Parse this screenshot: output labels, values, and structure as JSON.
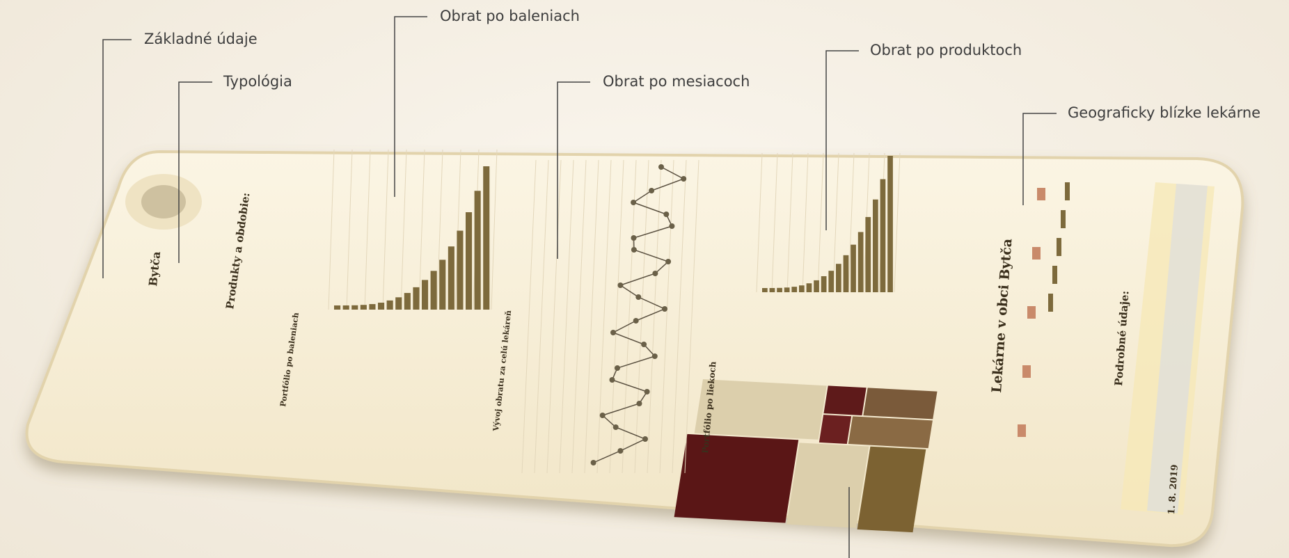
{
  "callouts": [
    {
      "label": "Základné údaje"
    },
    {
      "label": "Typológia"
    },
    {
      "label": "Obrat po baleniach"
    },
    {
      "label": "Obrat po mesiacoch"
    },
    {
      "label": "Obrat po produktoch"
    },
    {
      "label": "Geograficky blízke lekárne"
    }
  ],
  "dashboard": {
    "town": "Bytča",
    "filter_title": "Produkty a obdobie:",
    "packages_title": "Portfólio po baleniach",
    "trend_title": "Vývoj obratu za celú lekáreň",
    "drugs_title": "Portfólio po liekoch",
    "pharmacies_title": "Lekárne v obci Bytča",
    "details_title": "Podrobné údaje:",
    "date": "1. 8. 2019"
  }
}
